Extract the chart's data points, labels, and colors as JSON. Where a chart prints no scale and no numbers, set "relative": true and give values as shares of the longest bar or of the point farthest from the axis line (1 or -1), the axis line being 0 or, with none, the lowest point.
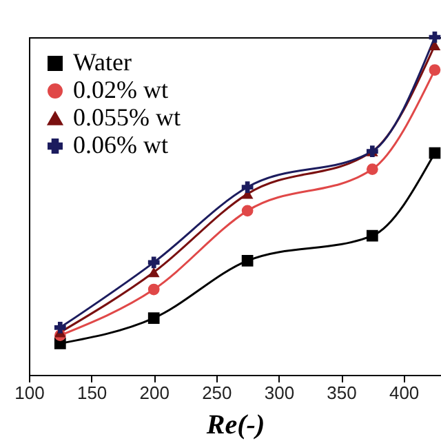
{
  "chart_data": {
    "type": "line",
    "xlabel": "Re(-)",
    "x": [
      125,
      200,
      275,
      375,
      425
    ],
    "xlim": [
      100,
      430
    ],
    "xticks": [
      100,
      150,
      200,
      250,
      300,
      350,
      400
    ],
    "relative": true,
    "legend": "top left",
    "series": [
      {
        "name": "Water",
        "color": "#000000",
        "marker": "square",
        "values": [
          0.093,
          0.168,
          0.338,
          0.412,
          0.657
        ]
      },
      {
        "name": "0.02% wt",
        "color": "#e04848",
        "marker": "circle",
        "values": [
          0.117,
          0.253,
          0.486,
          0.609,
          0.903
        ]
      },
      {
        "name": "0.055% wt",
        "color": "#7a1010",
        "marker": "triangle",
        "values": [
          0.126,
          0.304,
          0.536,
          0.662,
          0.976
        ]
      },
      {
        "name": "0.06% wt",
        "color": "#1c1c5e",
        "marker": "cross",
        "values": [
          0.14,
          0.333,
          0.556,
          0.662,
          1
        ]
      }
    ]
  }
}
